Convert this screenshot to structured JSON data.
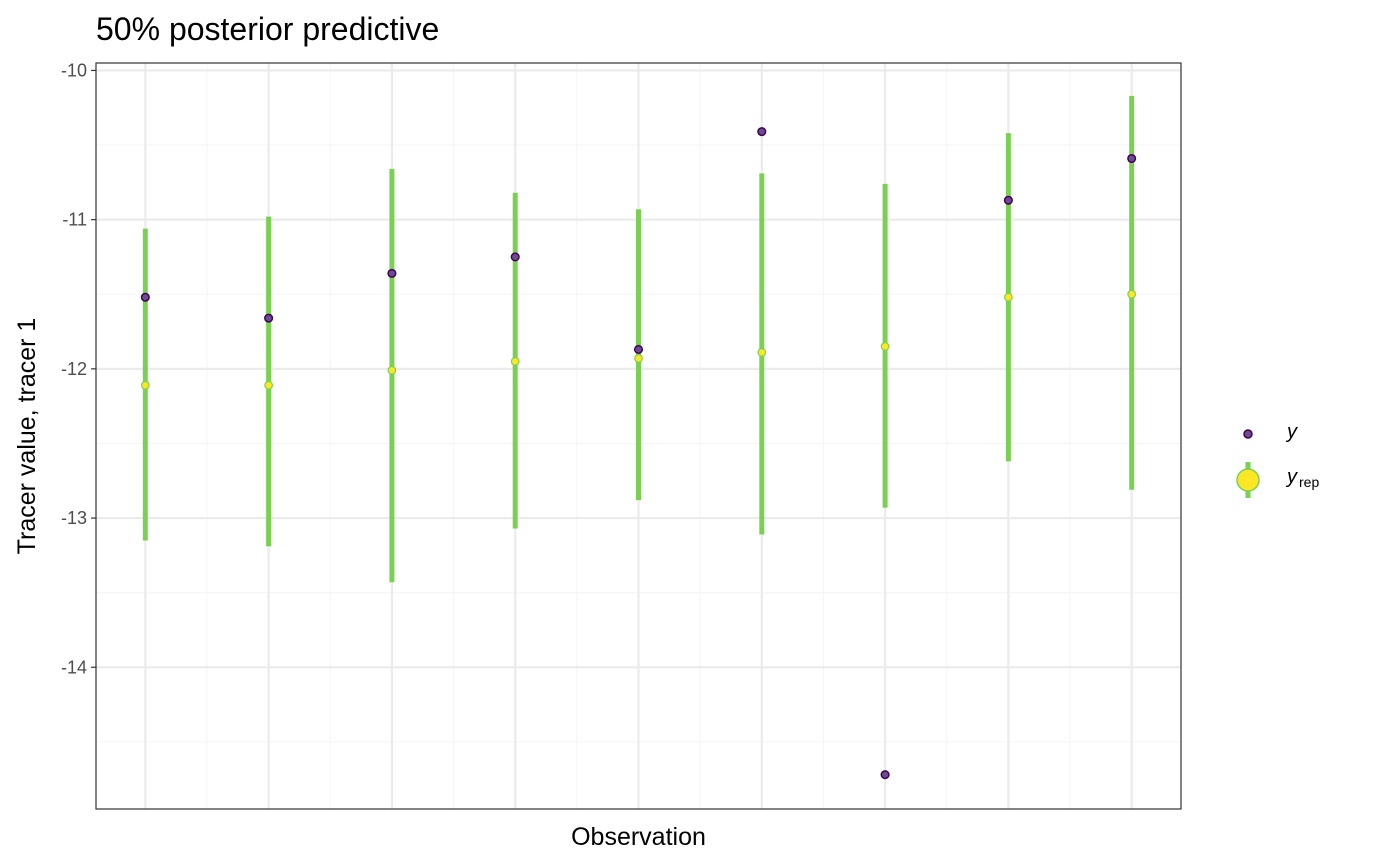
{
  "chart_data": {
    "type": "scatter",
    "title": "50% posterior predictive",
    "xlabel": "Observation",
    "ylabel": "Tracer value, tracer 1",
    "ylim": [
      -14.95,
      -9.95
    ],
    "y_ticks": [
      -10,
      -11,
      -12,
      -13,
      -14
    ],
    "y_tick_labels": [
      "-10",
      "-11",
      "-12",
      "-13",
      "-14"
    ],
    "x_ticks_shown": false,
    "grid": true,
    "legend_position": "right",
    "series": [
      {
        "name": "y",
        "kind": "point",
        "color": "#440154",
        "fill": "#6a4c93",
        "values": [
          -11.52,
          -11.66,
          -11.36,
          -11.25,
          -11.87,
          -10.41,
          -14.72,
          -10.87,
          -10.59
        ]
      },
      {
        "name": "y_rep",
        "kind": "pointrange",
        "color": "#fde725",
        "interval_color": "#7ad151",
        "median": [
          -12.11,
          -12.11,
          -12.01,
          -11.95,
          -11.93,
          -11.89,
          -11.85,
          -11.52,
          -11.5
        ],
        "lower": [
          -13.15,
          -13.19,
          -13.43,
          -13.07,
          -12.88,
          -13.11,
          -12.93,
          -12.62,
          -12.81
        ],
        "upper": [
          -11.06,
          -10.98,
          -10.66,
          -10.82,
          -10.93,
          -10.69,
          -10.76,
          -10.42,
          -10.17
        ]
      }
    ],
    "legend": [
      {
        "key": "y",
        "label": "y",
        "sub": ""
      },
      {
        "key": "y_rep",
        "label": "y",
        "sub": "rep"
      }
    ]
  },
  "colors": {
    "panel_border": "#333333",
    "grid_major": "#ebebeb",
    "grid_minor": "#f5f5f5"
  }
}
